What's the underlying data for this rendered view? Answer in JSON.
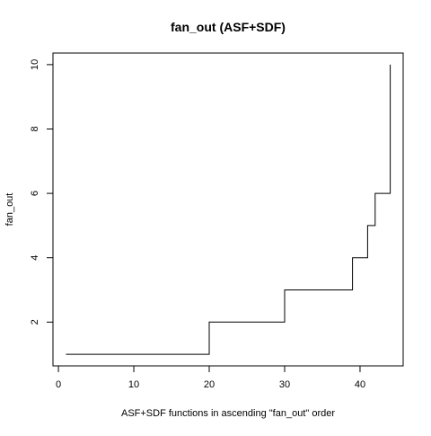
{
  "chart_data": {
    "type": "line",
    "step": true,
    "title": "fan_out (ASF+SDF)",
    "xlabel": "ASF+SDF functions in ascending \"fan_out\" order",
    "ylabel": "fan_out",
    "xlim": [
      -0.72,
      45.72
    ],
    "ylim": [
      0.64,
      10.36
    ],
    "x_ticks": [
      0,
      10,
      20,
      30,
      40
    ],
    "y_ticks": [
      2,
      4,
      6,
      8,
      10
    ],
    "grid": false,
    "series": [
      {
        "x": [
          1,
          20,
          20,
          30,
          30,
          39,
          39,
          41,
          41,
          42,
          42,
          44,
          44
        ],
        "y": [
          1,
          1,
          2,
          2,
          3,
          3,
          4,
          4,
          5,
          5,
          6,
          6,
          10
        ]
      }
    ]
  }
}
